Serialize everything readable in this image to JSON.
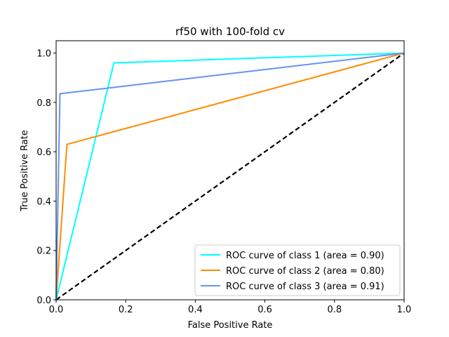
{
  "chart_data": {
    "type": "line",
    "title": "rf50 with 100-fold cv",
    "xlabel": "False Positive Rate",
    "ylabel": "True Positive Rate",
    "xlim": [
      0.0,
      1.0
    ],
    "ylim": [
      0.0,
      1.05
    ],
    "xticks": [
      0.0,
      0.2,
      0.4,
      0.6,
      0.8,
      1.0
    ],
    "yticks": [
      0.0,
      0.2,
      0.4,
      0.6,
      0.8,
      1.0
    ],
    "xtick_labels": [
      "0.0",
      "0.2",
      "0.4",
      "0.6",
      "0.8",
      "1.0"
    ],
    "ytick_labels": [
      "0.0",
      "0.2",
      "0.4",
      "0.6",
      "0.8",
      "1.0"
    ],
    "grid": false,
    "legend_position": "lower-right",
    "series": [
      {
        "name": "ROC curve of class 1 (area = 0.90)",
        "color": "#00ffff",
        "x": [
          0.0,
          0.166,
          1.0
        ],
        "y": [
          0.0,
          0.96,
          1.0
        ]
      },
      {
        "name": "ROC curve of class 2 (area = 0.80)",
        "color": "#ff8c00",
        "x": [
          0.0,
          0.031,
          1.0
        ],
        "y": [
          0.0,
          0.63,
          1.0
        ]
      },
      {
        "name": "ROC curve of class 3 (area = 0.91)",
        "color": "#6495ed",
        "x": [
          0.0,
          0.011,
          1.0
        ],
        "y": [
          0.0,
          0.835,
          1.0
        ]
      }
    ],
    "reference_line": {
      "x": [
        0.0,
        1.0
      ],
      "y": [
        0.0,
        1.0
      ],
      "color": "#000000",
      "style": "dashed"
    }
  }
}
